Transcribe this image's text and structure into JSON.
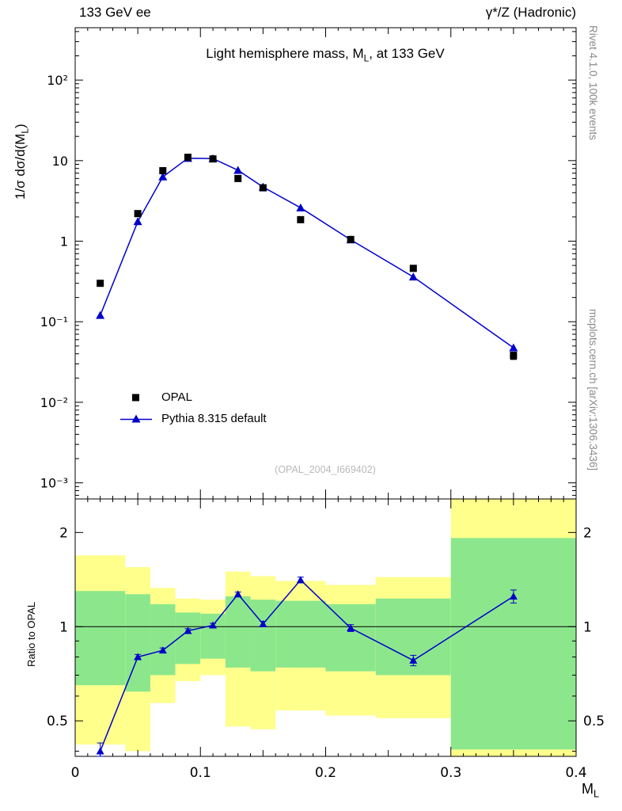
{
  "header": {
    "left": "133 GeV ee",
    "right": "γ*/Z (Hadronic)"
  },
  "watermarks": {
    "rivet": "Rivet 4.1.0,  100k events",
    "mcplots": "mcplots.cern.ch [arXiv:1306.3436]",
    "analysis": "(OPAL_2004_I669402)"
  },
  "title": {
    "pre": "Light hemisphere mass, M",
    "sub": "L",
    "post": ", at 133 GeV"
  },
  "axes": {
    "main_ylabel": {
      "pre": "1/σ  dσ/d(M",
      "sub": "L",
      "post": ")"
    },
    "ratio_ylabel": "Ratio to OPAL",
    "xlabel": {
      "pre": "M",
      "sub": "L"
    },
    "main_yticks": {
      "values": [
        100,
        10,
        1,
        0.1,
        0.01,
        0.001
      ],
      "labels": [
        "10²",
        "10",
        "1",
        "10⁻¹",
        "10⁻²",
        "10⁻³"
      ]
    },
    "ratio_yticks": {
      "values": [
        2,
        1,
        0.5
      ],
      "labels": [
        "2",
        "1",
        "0.5"
      ]
    },
    "ratio_yticks_minor": [
      0.4,
      0.6,
      0.7,
      0.8,
      0.9
    ],
    "xticks": {
      "values": [
        0,
        0.1,
        0.2,
        0.3,
        0.4
      ],
      "labels": [
        "0",
        "0.1",
        "0.2",
        "0.3",
        "0.4"
      ]
    }
  },
  "legend": [
    {
      "label": "OPAL",
      "marker": "square",
      "color": "#000000"
    },
    {
      "label": "Pythia 8.315 default",
      "marker": "triangle-line",
      "color": "#0000cc"
    }
  ],
  "colors": {
    "pythia": "#0000cc",
    "band_yellow": "#ffff8c",
    "band_green": "#8ce78c",
    "frame": "#000000"
  },
  "chart_data": {
    "type": "line",
    "title": "Light hemisphere mass, M_L, at 133 GeV",
    "xlabel": "M_L",
    "ylabel": "1/σ dσ/d(M_L)",
    "ratio_ylabel": "Ratio to OPAL",
    "legend_position": "inside-left-bottom",
    "grid": false,
    "yscale": "log",
    "xlim": [
      0,
      0.4
    ],
    "main_ylog_range": [
      -3.2,
      2.65
    ],
    "ratio_ylog_range": [
      -0.4145,
      0.4082
    ],
    "x": [
      0.02,
      0.05,
      0.07,
      0.09,
      0.11,
      0.13,
      0.15,
      0.18,
      0.22,
      0.27,
      0.35
    ],
    "series": [
      {
        "name": "OPAL",
        "type": "scatter",
        "marker": "square",
        "color": "#000000",
        "values": [
          0.3,
          2.2,
          7.5,
          11.0,
          10.5,
          6.0,
          4.6,
          1.85,
          1.05,
          0.46,
          0.038
        ],
        "errors": [
          0.02,
          0.1,
          0.3,
          0.35,
          0.35,
          0.25,
          0.2,
          0.1,
          0.06,
          0.03,
          0.004
        ]
      },
      {
        "name": "Pythia 8.315 default",
        "type": "line",
        "marker": "triangle",
        "color": "#0000cc",
        "values": [
          0.12,
          1.75,
          6.3,
          10.7,
          10.6,
          7.6,
          4.7,
          2.6,
          1.04,
          0.36,
          0.0475
        ]
      }
    ],
    "ratio": {
      "name": "Pythia 8.315 default / OPAL",
      "values": [
        0.4,
        0.8,
        0.84,
        0.97,
        1.01,
        1.27,
        1.02,
        1.41,
        0.99,
        0.78,
        1.25
      ],
      "errors": [
        0.025,
        0.015,
        0.015,
        0.015,
        0.015,
        0.02,
        0.02,
        0.03,
        0.025,
        0.03,
        0.06
      ],
      "reference_line": 1,
      "band_edges": [
        0,
        0.04,
        0.06,
        0.08,
        0.1,
        0.12,
        0.14,
        0.16,
        0.2,
        0.24,
        0.3,
        0.4
      ],
      "yellow_lo": [
        0.42,
        0.4,
        0.57,
        0.67,
        0.7,
        0.48,
        0.47,
        0.54,
        0.52,
        0.51,
        0.385
      ],
      "yellow_hi": [
        1.69,
        1.55,
        1.33,
        1.23,
        1.22,
        1.5,
        1.45,
        1.4,
        1.36,
        1.44,
        2.56
      ],
      "green_lo": [
        0.65,
        0.62,
        0.7,
        0.76,
        0.79,
        0.74,
        0.72,
        0.74,
        0.72,
        0.7,
        0.405
      ],
      "green_hi": [
        1.3,
        1.27,
        1.18,
        1.11,
        1.1,
        1.25,
        1.22,
        1.21,
        1.18,
        1.23,
        1.92
      ]
    }
  }
}
